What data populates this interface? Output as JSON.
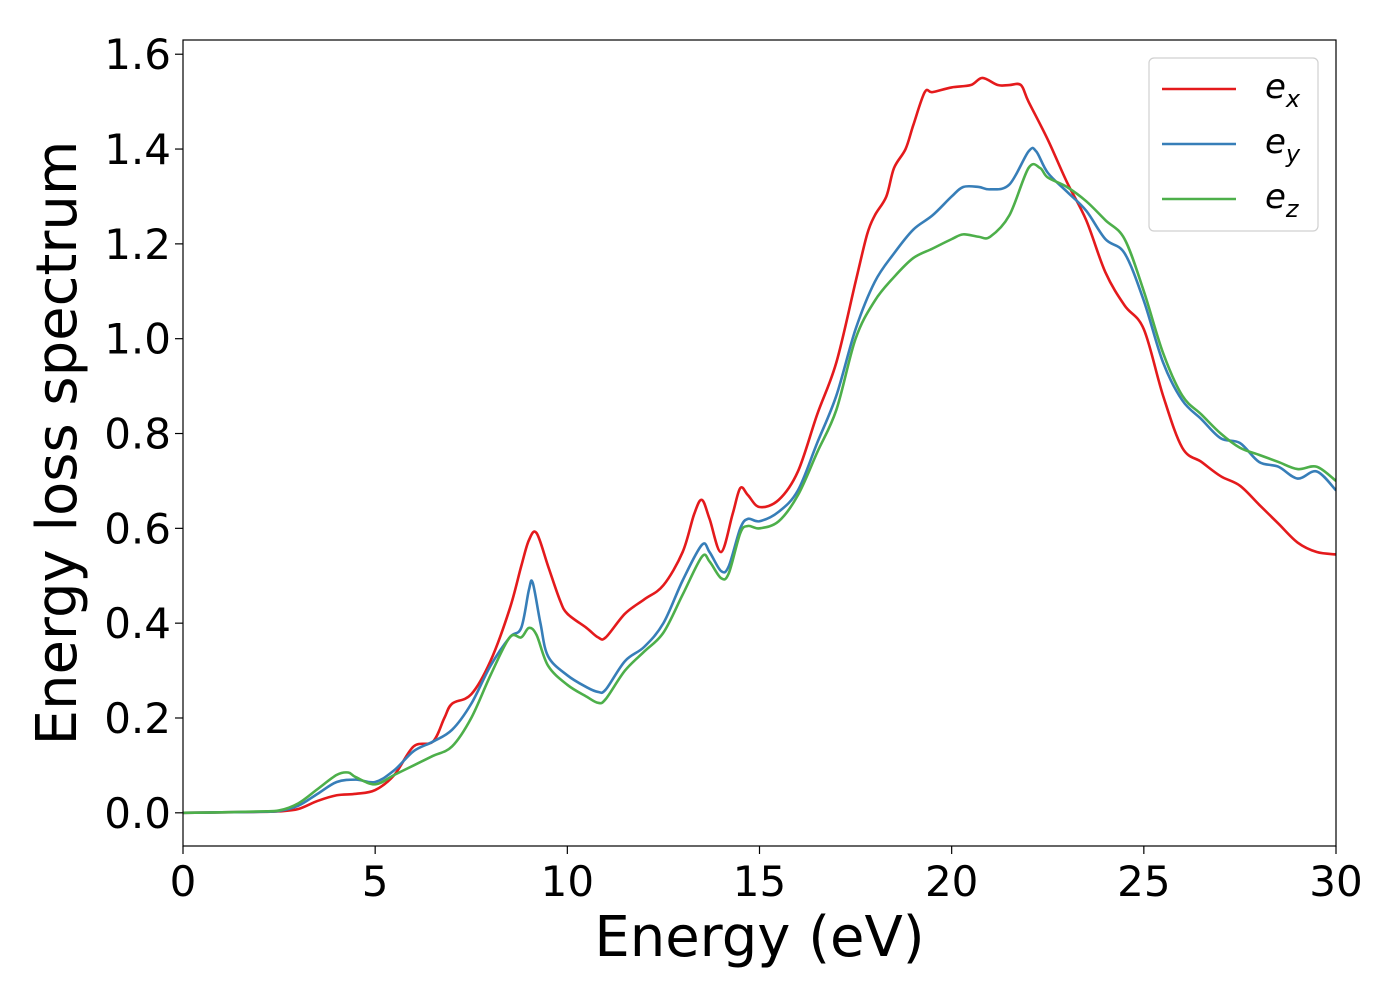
{
  "chart_data": {
    "type": "line",
    "title": "",
    "xlabel": "Energy (eV)",
    "ylabel": "Energy loss spectrum",
    "xlim": [
      0,
      30
    ],
    "ylim": [
      -0.07,
      1.63
    ],
    "xticks": [
      0,
      5,
      10,
      15,
      20,
      25,
      30
    ],
    "xtick_labels": [
      "0",
      "5",
      "10",
      "15",
      "20",
      "25",
      "30"
    ],
    "yticks": [
      0.0,
      0.2,
      0.4,
      0.6,
      0.8,
      1.0,
      1.2,
      1.4,
      1.6
    ],
    "ytick_labels": [
      "0.0",
      "0.2",
      "0.4",
      "0.6",
      "0.8",
      "1.0",
      "1.2",
      "1.4",
      "1.6"
    ],
    "grid": false,
    "legend_position": "top-right",
    "series": [
      {
        "name": "e_x",
        "label_base": "e",
        "label_sub": "x",
        "color": "#e41a1c",
        "points": [
          [
            0,
            0
          ],
          [
            1,
            0.001
          ],
          [
            2,
            0.002
          ],
          [
            2.5,
            0.003
          ],
          [
            3,
            0.008
          ],
          [
            3.5,
            0.025
          ],
          [
            4,
            0.037
          ],
          [
            4.5,
            0.04
          ],
          [
            5,
            0.048
          ],
          [
            5.5,
            0.08
          ],
          [
            6,
            0.14
          ],
          [
            6.5,
            0.15
          ],
          [
            6.8,
            0.2
          ],
          [
            7,
            0.23
          ],
          [
            7.5,
            0.25
          ],
          [
            8,
            0.32
          ],
          [
            8.5,
            0.43
          ],
          [
            8.8,
            0.52
          ],
          [
            9,
            0.575
          ],
          [
            9.2,
            0.59
          ],
          [
            9.5,
            0.52
          ],
          [
            9.8,
            0.45
          ],
          [
            10,
            0.42
          ],
          [
            10.5,
            0.39
          ],
          [
            10.8,
            0.37
          ],
          [
            11,
            0.37
          ],
          [
            11.5,
            0.42
          ],
          [
            12,
            0.45
          ],
          [
            12.5,
            0.48
          ],
          [
            13,
            0.55
          ],
          [
            13.3,
            0.63
          ],
          [
            13.5,
            0.66
          ],
          [
            13.7,
            0.62
          ],
          [
            14,
            0.55
          ],
          [
            14.3,
            0.63
          ],
          [
            14.5,
            0.685
          ],
          [
            14.7,
            0.67
          ],
          [
            15,
            0.645
          ],
          [
            15.5,
            0.66
          ],
          [
            16,
            0.72
          ],
          [
            16.5,
            0.84
          ],
          [
            17,
            0.95
          ],
          [
            17.5,
            1.12
          ],
          [
            17.8,
            1.22
          ],
          [
            18,
            1.26
          ],
          [
            18.3,
            1.3
          ],
          [
            18.5,
            1.36
          ],
          [
            18.8,
            1.4
          ],
          [
            19,
            1.45
          ],
          [
            19.3,
            1.52
          ],
          [
            19.5,
            1.52
          ],
          [
            20,
            1.53
          ],
          [
            20.5,
            1.535
          ],
          [
            20.8,
            1.55
          ],
          [
            21.2,
            1.535
          ],
          [
            21.5,
            1.535
          ],
          [
            21.8,
            1.535
          ],
          [
            22,
            1.5
          ],
          [
            22.5,
            1.42
          ],
          [
            23,
            1.33
          ],
          [
            23.5,
            1.25
          ],
          [
            24,
            1.14
          ],
          [
            24.5,
            1.07
          ],
          [
            25,
            1.02
          ],
          [
            25.5,
            0.88
          ],
          [
            26,
            0.77
          ],
          [
            26.5,
            0.74
          ],
          [
            27,
            0.71
          ],
          [
            27.5,
            0.69
          ],
          [
            28,
            0.65
          ],
          [
            28.5,
            0.61
          ],
          [
            29,
            0.57
          ],
          [
            29.5,
            0.55
          ],
          [
            30,
            0.545
          ]
        ]
      },
      {
        "name": "e_y",
        "label_base": "e",
        "label_sub": "y",
        "color": "#377eb8",
        "points": [
          [
            0,
            0
          ],
          [
            1,
            0.001
          ],
          [
            2,
            0.002
          ],
          [
            2.5,
            0.004
          ],
          [
            3,
            0.015
          ],
          [
            3.5,
            0.04
          ],
          [
            4,
            0.065
          ],
          [
            4.5,
            0.07
          ],
          [
            5,
            0.065
          ],
          [
            5.5,
            0.09
          ],
          [
            6,
            0.13
          ],
          [
            6.5,
            0.15
          ],
          [
            7,
            0.175
          ],
          [
            7.5,
            0.23
          ],
          [
            8,
            0.31
          ],
          [
            8.5,
            0.37
          ],
          [
            8.8,
            0.39
          ],
          [
            9,
            0.47
          ],
          [
            9.1,
            0.485
          ],
          [
            9.3,
            0.4
          ],
          [
            9.5,
            0.33
          ],
          [
            10,
            0.29
          ],
          [
            10.5,
            0.265
          ],
          [
            10.8,
            0.255
          ],
          [
            11,
            0.26
          ],
          [
            11.5,
            0.32
          ],
          [
            12,
            0.35
          ],
          [
            12.5,
            0.4
          ],
          [
            13,
            0.49
          ],
          [
            13.5,
            0.565
          ],
          [
            13.7,
            0.55
          ],
          [
            14,
            0.51
          ],
          [
            14.2,
            0.52
          ],
          [
            14.5,
            0.6
          ],
          [
            14.7,
            0.62
          ],
          [
            15,
            0.615
          ],
          [
            15.5,
            0.635
          ],
          [
            16,
            0.68
          ],
          [
            16.5,
            0.78
          ],
          [
            17,
            0.88
          ],
          [
            17.5,
            1.02
          ],
          [
            18,
            1.12
          ],
          [
            18.5,
            1.18
          ],
          [
            19,
            1.23
          ],
          [
            19.5,
            1.26
          ],
          [
            20,
            1.3
          ],
          [
            20.3,
            1.32
          ],
          [
            20.7,
            1.32
          ],
          [
            21,
            1.315
          ],
          [
            21.5,
            1.325
          ],
          [
            22,
            1.395
          ],
          [
            22.2,
            1.395
          ],
          [
            22.5,
            1.35
          ],
          [
            23,
            1.31
          ],
          [
            23.5,
            1.27
          ],
          [
            24,
            1.21
          ],
          [
            24.5,
            1.18
          ],
          [
            25,
            1.08
          ],
          [
            25.5,
            0.95
          ],
          [
            26,
            0.87
          ],
          [
            26.5,
            0.83
          ],
          [
            27,
            0.79
          ],
          [
            27.5,
            0.78
          ],
          [
            28,
            0.74
          ],
          [
            28.5,
            0.73
          ],
          [
            29,
            0.705
          ],
          [
            29.5,
            0.72
          ],
          [
            30,
            0.68
          ]
        ]
      },
      {
        "name": "e_z",
        "label_base": "e",
        "label_sub": "z",
        "color": "#4daf4a",
        "points": [
          [
            0,
            0
          ],
          [
            1,
            0.001
          ],
          [
            2,
            0.003
          ],
          [
            2.5,
            0.005
          ],
          [
            3,
            0.02
          ],
          [
            3.5,
            0.05
          ],
          [
            4,
            0.08
          ],
          [
            4.3,
            0.085
          ],
          [
            4.5,
            0.075
          ],
          [
            5,
            0.06
          ],
          [
            5.5,
            0.08
          ],
          [
            6,
            0.1
          ],
          [
            6.5,
            0.12
          ],
          [
            7,
            0.14
          ],
          [
            7.5,
            0.2
          ],
          [
            8,
            0.29
          ],
          [
            8.5,
            0.37
          ],
          [
            8.8,
            0.37
          ],
          [
            9,
            0.39
          ],
          [
            9.2,
            0.375
          ],
          [
            9.5,
            0.31
          ],
          [
            10,
            0.27
          ],
          [
            10.5,
            0.245
          ],
          [
            10.8,
            0.232
          ],
          [
            11,
            0.24
          ],
          [
            11.5,
            0.3
          ],
          [
            12,
            0.34
          ],
          [
            12.5,
            0.38
          ],
          [
            13,
            0.46
          ],
          [
            13.5,
            0.54
          ],
          [
            13.7,
            0.53
          ],
          [
            14,
            0.495
          ],
          [
            14.2,
            0.505
          ],
          [
            14.5,
            0.59
          ],
          [
            14.7,
            0.605
          ],
          [
            15,
            0.6
          ],
          [
            15.5,
            0.615
          ],
          [
            16,
            0.67
          ],
          [
            16.5,
            0.76
          ],
          [
            17,
            0.85
          ],
          [
            17.5,
            1.0
          ],
          [
            18,
            1.08
          ],
          [
            18.5,
            1.13
          ],
          [
            19,
            1.17
          ],
          [
            19.5,
            1.19
          ],
          [
            20,
            1.21
          ],
          [
            20.3,
            1.22
          ],
          [
            20.7,
            1.215
          ],
          [
            21,
            1.215
          ],
          [
            21.5,
            1.26
          ],
          [
            22,
            1.36
          ],
          [
            22.3,
            1.36
          ],
          [
            22.5,
            1.34
          ],
          [
            23,
            1.32
          ],
          [
            23.5,
            1.29
          ],
          [
            24,
            1.25
          ],
          [
            24.5,
            1.21
          ],
          [
            25,
            1.1
          ],
          [
            25.5,
            0.97
          ],
          [
            26,
            0.88
          ],
          [
            26.5,
            0.84
          ],
          [
            27,
            0.8
          ],
          [
            27.5,
            0.77
          ],
          [
            28,
            0.755
          ],
          [
            28.5,
            0.74
          ],
          [
            29,
            0.725
          ],
          [
            29.5,
            0.73
          ],
          [
            30,
            0.7
          ]
        ]
      }
    ]
  }
}
